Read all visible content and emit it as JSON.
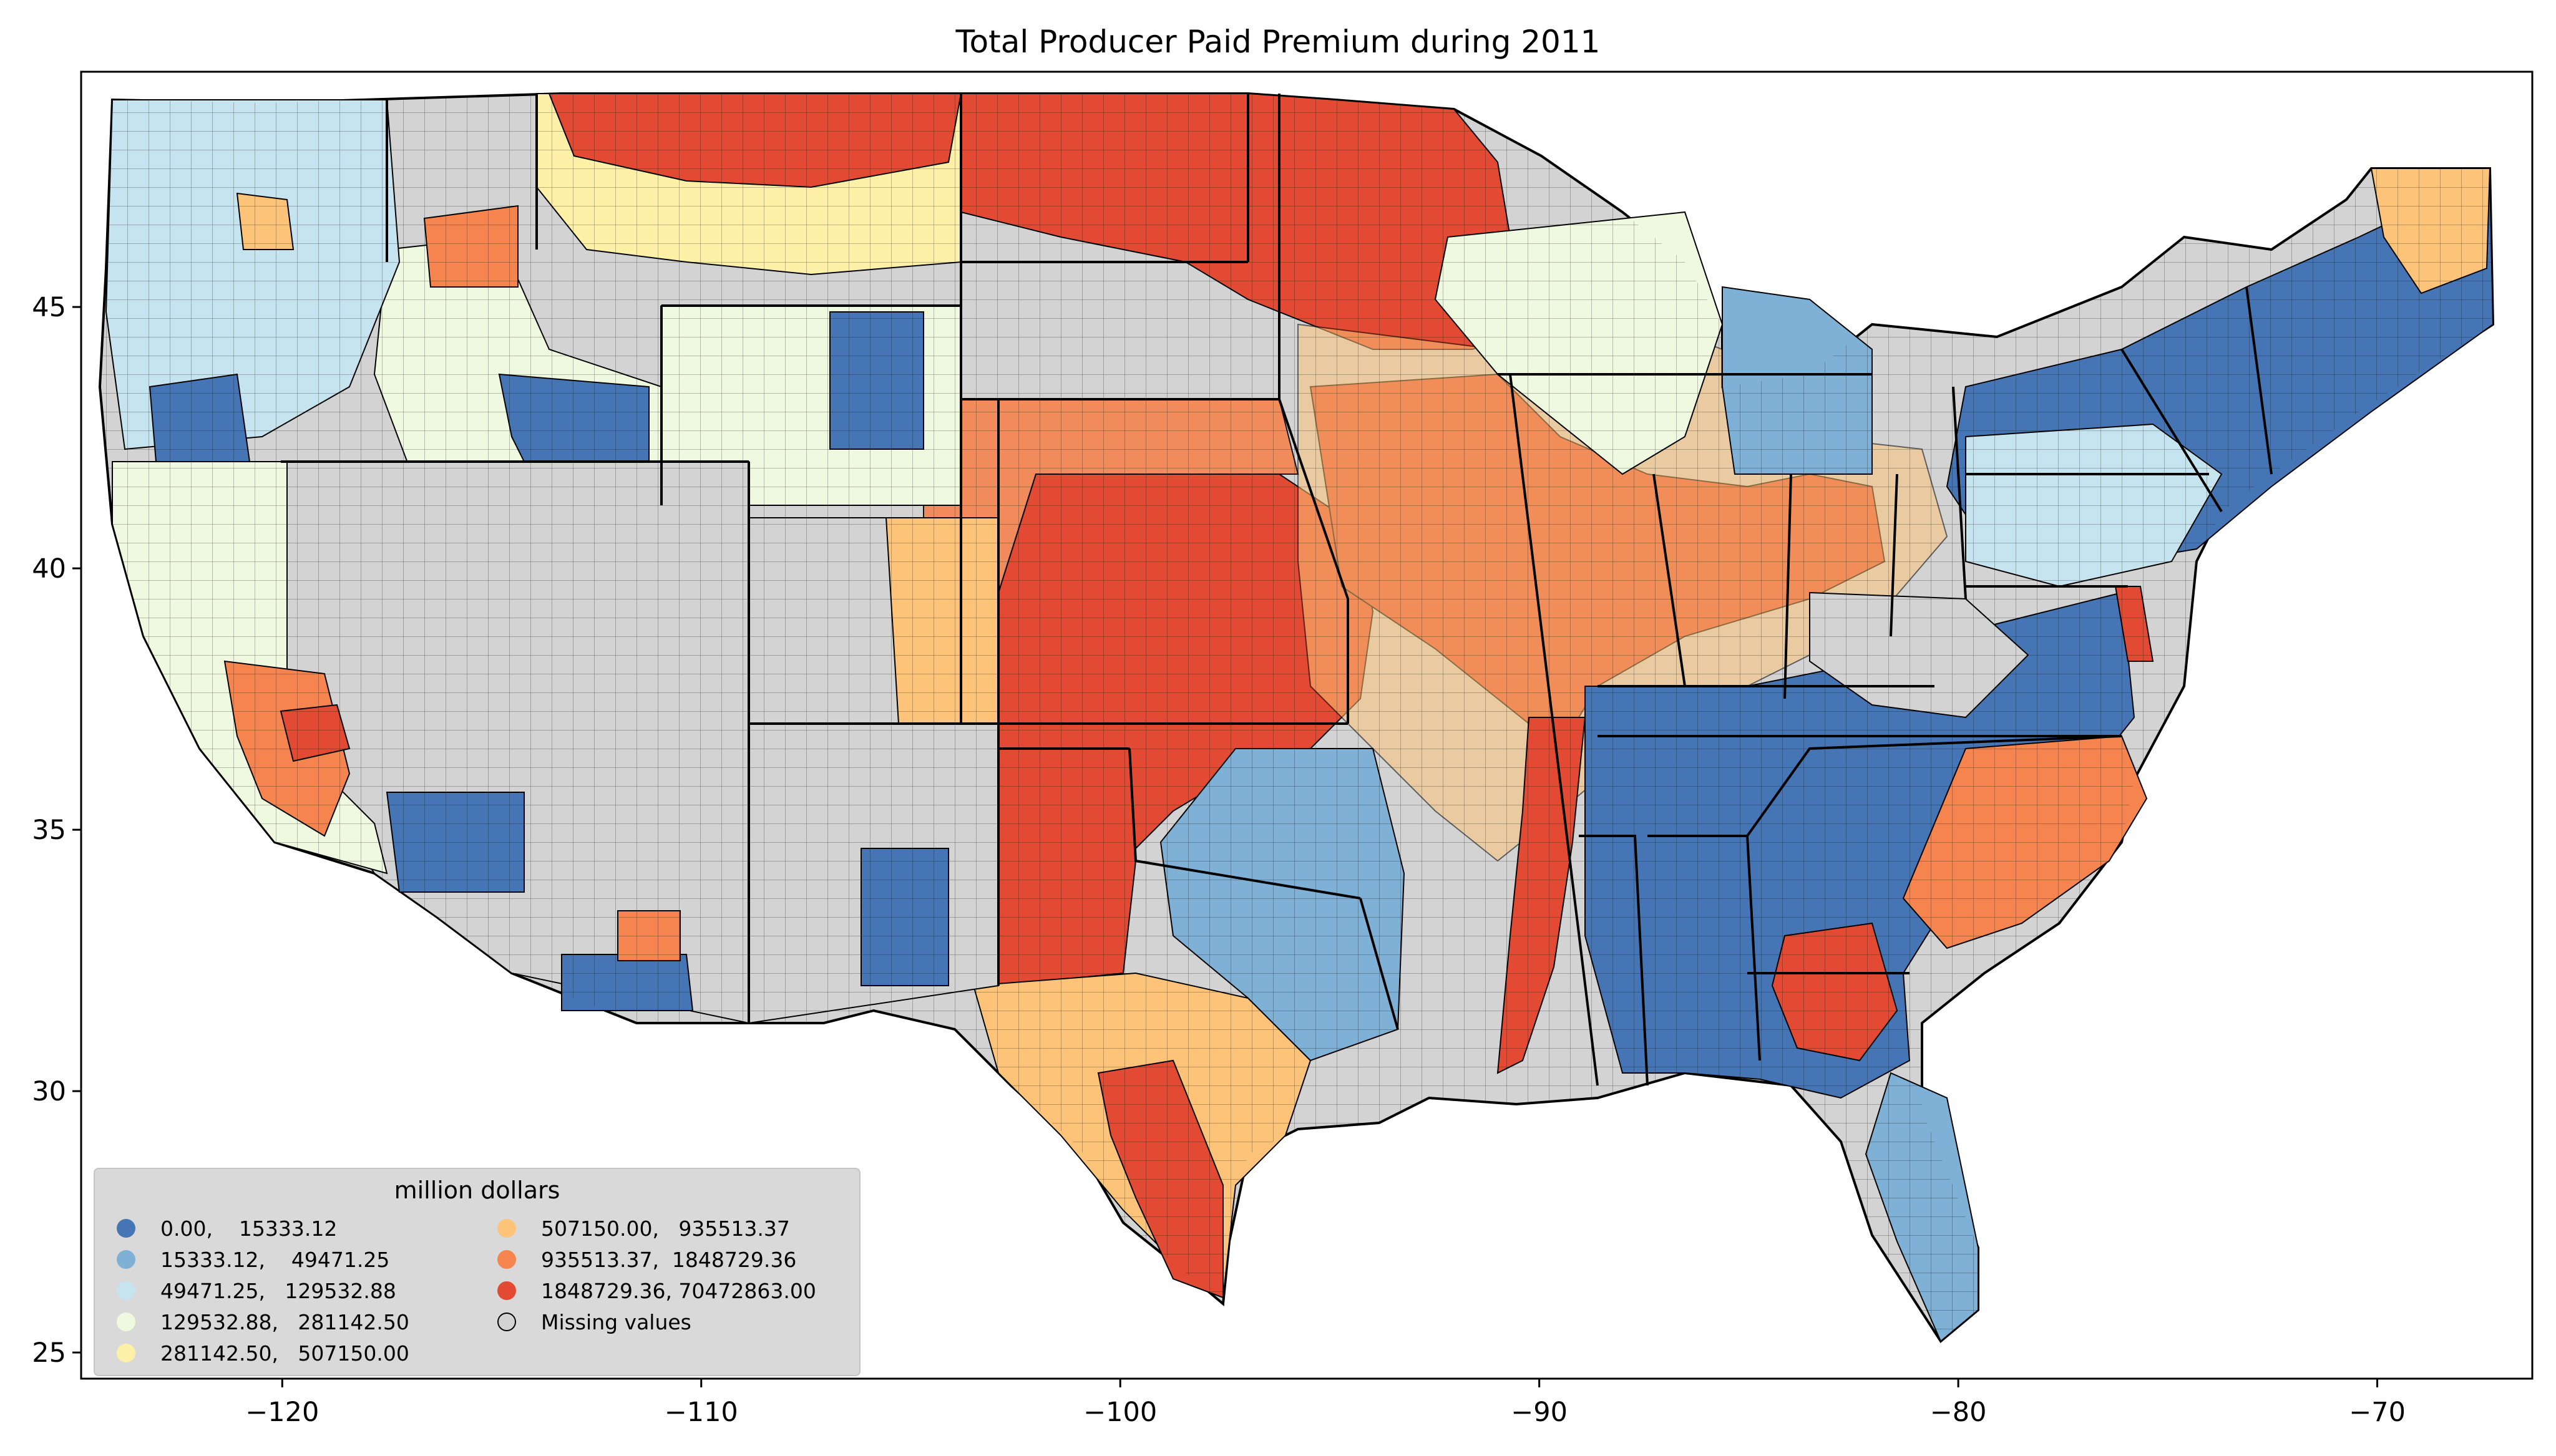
{
  "title": "Total Producer Paid Premium during 2011",
  "axes": {
    "x_ticks": [
      "−120",
      "−110",
      "−100",
      "−90",
      "−80",
      "−70"
    ],
    "y_ticks": [
      "45",
      "40",
      "35",
      "30",
      "25"
    ],
    "xlim": [
      -124.8,
      -66.3
    ],
    "ylim": [
      24.5,
      49.5
    ]
  },
  "legend": {
    "title": "million dollars",
    "items": [
      {
        "label": "0.00,    15333.12",
        "color": "#4575b4"
      },
      {
        "label": "15333.12,    49471.25",
        "color": "#7fb0d6"
      },
      {
        "label": "49471.25,   129532.88",
        "color": "#c5e4ef"
      },
      {
        "label": "129532.88,   281142.50",
        "color": "#eff9e0"
      },
      {
        "label": "281142.50,   507150.00",
        "color": "#fff0a8"
      },
      {
        "label": "507150.00,   935513.37",
        "color": "#fdc479"
      },
      {
        "label": "935513.37,  1848729.36",
        "color": "#f5844f"
      },
      {
        "label": "1848729.36, 70472863.00",
        "color": "#e34a33"
      },
      {
        "label": "Missing values",
        "color": "#d3d3d3"
      }
    ]
  },
  "colors": {
    "missing": "#d3d3d3",
    "county_edge": "#000000",
    "state_edge": "#000000"
  }
}
